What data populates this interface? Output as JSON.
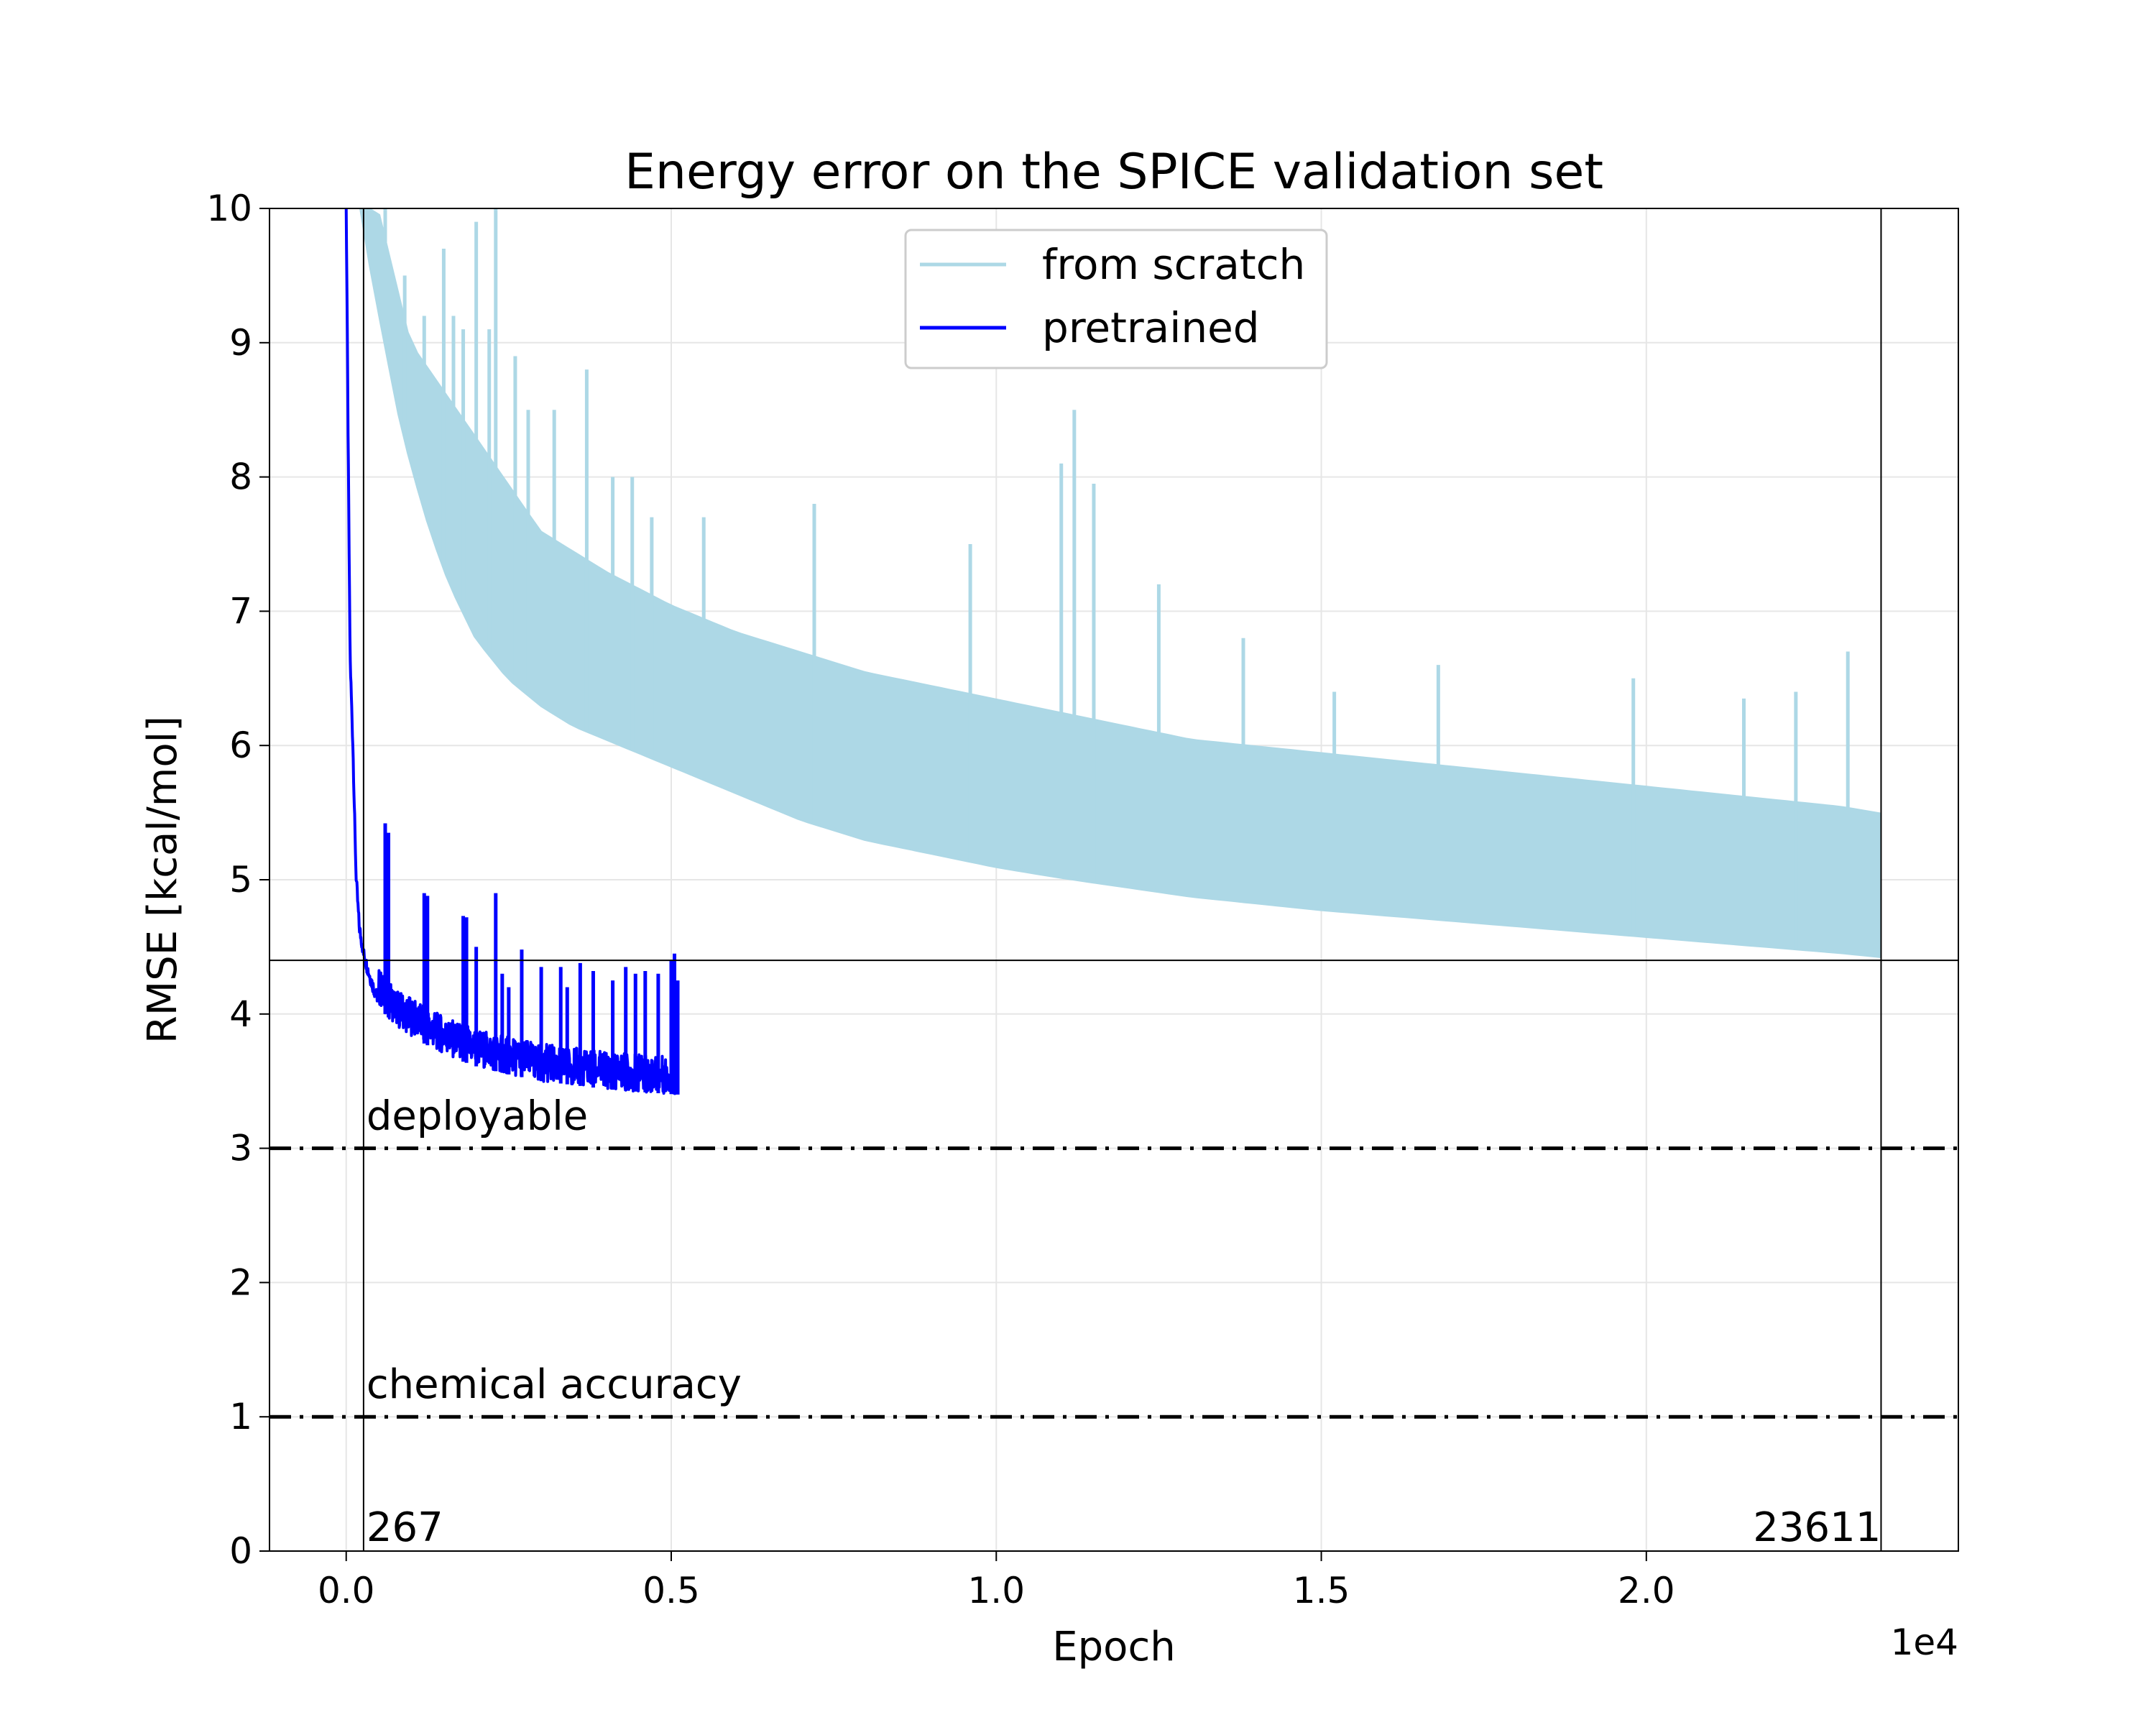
{
  "chart_data": {
    "type": "line",
    "title": "Energy error on the SPICE validation set",
    "xlabel": "Epoch",
    "ylabel": "RMSE [kcal/mol]",
    "x_offset_text": "1e4",
    "xlim": [
      -1180,
      24800
    ],
    "ylim": [
      0,
      10
    ],
    "xticks": [
      0,
      5000,
      10000,
      15000,
      20000
    ],
    "xtick_labels": [
      "0.0",
      "0.5",
      "1.0",
      "1.5",
      "2.0"
    ],
    "yticks": [
      0,
      1,
      2,
      3,
      4,
      5,
      6,
      7,
      8,
      9,
      10
    ],
    "ytick_labels": [
      "0",
      "1",
      "2",
      "3",
      "4",
      "5",
      "6",
      "7",
      "8",
      "9",
      "10"
    ],
    "grid": true,
    "legend_position": "upper center",
    "series": [
      {
        "name": "from scratch",
        "color": "#add8e6",
        "lower_envelope": {
          "x": [
            230,
            400,
            600,
            800,
            1000,
            1300,
            1600,
            2000,
            2500,
            3000,
            3500,
            4000,
            5000,
            6000,
            7000,
            8000,
            9000,
            10000,
            11000,
            12000,
            13000,
            14000,
            15000,
            16000,
            17000,
            18000,
            19000,
            20000,
            21000,
            22000,
            23000,
            23611
          ],
          "y": [
            10.0,
            9.5,
            9.0,
            8.5,
            8.1,
            7.6,
            7.2,
            6.8,
            6.5,
            6.3,
            6.15,
            6.05,
            5.85,
            5.65,
            5.45,
            5.3,
            5.2,
            5.1,
            5.02,
            4.95,
            4.88,
            4.83,
            4.78,
            4.74,
            4.7,
            4.66,
            4.62,
            4.58,
            4.54,
            4.5,
            4.46,
            4.43
          ]
        },
        "upper_envelope": {
          "x": [
            500,
            1000,
            2000,
            3000,
            4000,
            5000,
            6000,
            7000,
            8000,
            9000,
            10000,
            11000,
            12000,
            13000,
            14000,
            15000,
            16000,
            17000,
            18000,
            19000,
            20000,
            21000,
            22000,
            23000,
            23611
          ],
          "y": [
            10.0,
            9.0,
            8.3,
            7.6,
            7.3,
            7.05,
            6.85,
            6.7,
            6.55,
            6.45,
            6.35,
            6.25,
            6.15,
            6.05,
            6.0,
            5.95,
            5.9,
            5.85,
            5.8,
            5.75,
            5.7,
            5.65,
            5.6,
            5.55,
            5.5
          ]
        },
        "spikes": {
          "x": [
            600,
            900,
            1200,
            1500,
            1650,
            1800,
            2000,
            2200,
            2300,
            2600,
            2800,
            3200,
            3700,
            4100,
            4400,
            4700,
            5500,
            7200,
            9600,
            11000,
            11200,
            11500,
            12500,
            13800,
            15200,
            16800,
            19800,
            21500,
            22300,
            23100
          ],
          "y": [
            10.3,
            9.5,
            9.2,
            9.7,
            9.2,
            9.1,
            9.9,
            9.1,
            10.0,
            8.9,
            8.5,
            8.5,
            8.8,
            8.0,
            8.0,
            7.7,
            7.7,
            7.8,
            7.5,
            8.1,
            8.5,
            7.95,
            7.2,
            6.8,
            6.4,
            6.6,
            6.5,
            6.35,
            6.4,
            6.7
          ]
        }
      },
      {
        "name": "pretrained",
        "color": "#0000ff",
        "lower_envelope": {
          "x": [
            0,
            30,
            60,
            100,
            150,
            200,
            267,
            350,
            450,
            600,
            800,
            1200,
            1600,
            2000,
            2500,
            3000,
            3500,
            4000,
            4500,
            5100
          ],
          "y": [
            10.0,
            8.2,
            6.6,
            6.0,
            5.0,
            4.6,
            4.4,
            4.25,
            4.1,
            4.0,
            3.9,
            3.78,
            3.68,
            3.61,
            3.55,
            3.5,
            3.47,
            3.44,
            3.42,
            3.4
          ]
        },
        "spikes": {
          "x": [
            600,
            650,
            1200,
            1250,
            1800,
            1850,
            2000,
            2300,
            2400,
            2500,
            2700,
            3000,
            3300,
            3400,
            3600,
            3800,
            4100,
            4300,
            4450,
            4600,
            4800,
            5000,
            5050
          ],
          "y": [
            5.42,
            5.35,
            4.9,
            4.88,
            4.73,
            4.72,
            4.5,
            4.9,
            4.3,
            4.2,
            4.48,
            4.35,
            4.35,
            4.2,
            4.38,
            4.32,
            4.25,
            4.35,
            4.3,
            4.32,
            4.3,
            4.4,
            4.45
          ]
        }
      }
    ],
    "reference_lines": [
      {
        "type": "horizontal",
        "y": 3,
        "label": "deployable",
        "style": "dashdot"
      },
      {
        "type": "horizontal",
        "y": 1,
        "label": "chemical accuracy",
        "style": "dashdot"
      },
      {
        "type": "horizontal",
        "y": 4.4,
        "style": "solid"
      },
      {
        "type": "vertical",
        "x": 267,
        "label": "267",
        "style": "solid"
      },
      {
        "type": "vertical",
        "x": 23611,
        "label": "23611",
        "style": "solid"
      }
    ]
  }
}
